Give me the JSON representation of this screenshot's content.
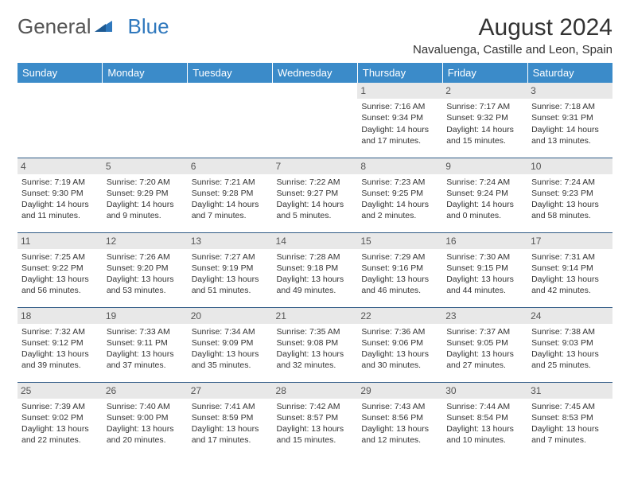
{
  "logo": {
    "text1": "General",
    "text2": "Blue"
  },
  "title": "August 2024",
  "location": "Navaluenga, Castille and Leon, Spain",
  "colors": {
    "header_bg": "#3b8bc9",
    "header_text": "#ffffff",
    "border": "#2f5a85",
    "daynum_bg": "#e8e8e8",
    "logo_blue": "#2f78bd",
    "text": "#333333",
    "page_bg": "#ffffff"
  },
  "weekdays": [
    "Sunday",
    "Monday",
    "Tuesday",
    "Wednesday",
    "Thursday",
    "Friday",
    "Saturday"
  ],
  "weeks": [
    [
      null,
      null,
      null,
      null,
      {
        "n": "1",
        "sr": "7:16 AM",
        "ss": "9:34 PM",
        "dl": "14 hours and 17 minutes."
      },
      {
        "n": "2",
        "sr": "7:17 AM",
        "ss": "9:32 PM",
        "dl": "14 hours and 15 minutes."
      },
      {
        "n": "3",
        "sr": "7:18 AM",
        "ss": "9:31 PM",
        "dl": "14 hours and 13 minutes."
      }
    ],
    [
      {
        "n": "4",
        "sr": "7:19 AM",
        "ss": "9:30 PM",
        "dl": "14 hours and 11 minutes."
      },
      {
        "n": "5",
        "sr": "7:20 AM",
        "ss": "9:29 PM",
        "dl": "14 hours and 9 minutes."
      },
      {
        "n": "6",
        "sr": "7:21 AM",
        "ss": "9:28 PM",
        "dl": "14 hours and 7 minutes."
      },
      {
        "n": "7",
        "sr": "7:22 AM",
        "ss": "9:27 PM",
        "dl": "14 hours and 5 minutes."
      },
      {
        "n": "8",
        "sr": "7:23 AM",
        "ss": "9:25 PM",
        "dl": "14 hours and 2 minutes."
      },
      {
        "n": "9",
        "sr": "7:24 AM",
        "ss": "9:24 PM",
        "dl": "14 hours and 0 minutes."
      },
      {
        "n": "10",
        "sr": "7:24 AM",
        "ss": "9:23 PM",
        "dl": "13 hours and 58 minutes."
      }
    ],
    [
      {
        "n": "11",
        "sr": "7:25 AM",
        "ss": "9:22 PM",
        "dl": "13 hours and 56 minutes."
      },
      {
        "n": "12",
        "sr": "7:26 AM",
        "ss": "9:20 PM",
        "dl": "13 hours and 53 minutes."
      },
      {
        "n": "13",
        "sr": "7:27 AM",
        "ss": "9:19 PM",
        "dl": "13 hours and 51 minutes."
      },
      {
        "n": "14",
        "sr": "7:28 AM",
        "ss": "9:18 PM",
        "dl": "13 hours and 49 minutes."
      },
      {
        "n": "15",
        "sr": "7:29 AM",
        "ss": "9:16 PM",
        "dl": "13 hours and 46 minutes."
      },
      {
        "n": "16",
        "sr": "7:30 AM",
        "ss": "9:15 PM",
        "dl": "13 hours and 44 minutes."
      },
      {
        "n": "17",
        "sr": "7:31 AM",
        "ss": "9:14 PM",
        "dl": "13 hours and 42 minutes."
      }
    ],
    [
      {
        "n": "18",
        "sr": "7:32 AM",
        "ss": "9:12 PM",
        "dl": "13 hours and 39 minutes."
      },
      {
        "n": "19",
        "sr": "7:33 AM",
        "ss": "9:11 PM",
        "dl": "13 hours and 37 minutes."
      },
      {
        "n": "20",
        "sr": "7:34 AM",
        "ss": "9:09 PM",
        "dl": "13 hours and 35 minutes."
      },
      {
        "n": "21",
        "sr": "7:35 AM",
        "ss": "9:08 PM",
        "dl": "13 hours and 32 minutes."
      },
      {
        "n": "22",
        "sr": "7:36 AM",
        "ss": "9:06 PM",
        "dl": "13 hours and 30 minutes."
      },
      {
        "n": "23",
        "sr": "7:37 AM",
        "ss": "9:05 PM",
        "dl": "13 hours and 27 minutes."
      },
      {
        "n": "24",
        "sr": "7:38 AM",
        "ss": "9:03 PM",
        "dl": "13 hours and 25 minutes."
      }
    ],
    [
      {
        "n": "25",
        "sr": "7:39 AM",
        "ss": "9:02 PM",
        "dl": "13 hours and 22 minutes."
      },
      {
        "n": "26",
        "sr": "7:40 AM",
        "ss": "9:00 PM",
        "dl": "13 hours and 20 minutes."
      },
      {
        "n": "27",
        "sr": "7:41 AM",
        "ss": "8:59 PM",
        "dl": "13 hours and 17 minutes."
      },
      {
        "n": "28",
        "sr": "7:42 AM",
        "ss": "8:57 PM",
        "dl": "13 hours and 15 minutes."
      },
      {
        "n": "29",
        "sr": "7:43 AM",
        "ss": "8:56 PM",
        "dl": "13 hours and 12 minutes."
      },
      {
        "n": "30",
        "sr": "7:44 AM",
        "ss": "8:54 PM",
        "dl": "13 hours and 10 minutes."
      },
      {
        "n": "31",
        "sr": "7:45 AM",
        "ss": "8:53 PM",
        "dl": "13 hours and 7 minutes."
      }
    ]
  ],
  "labels": {
    "sunrise": "Sunrise: ",
    "sunset": "Sunset: ",
    "daylight": "Daylight: "
  }
}
